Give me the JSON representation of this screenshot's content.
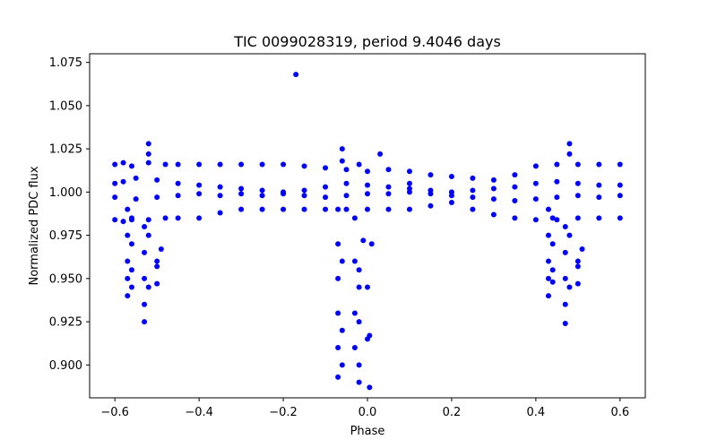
{
  "chart_data": {
    "type": "scatter",
    "title": "TIC 0099028319, period 9.4046 days",
    "xlabel": "Phase",
    "ylabel": "Normalized PDC flux",
    "xlim": [
      -0.66,
      0.66
    ],
    "ylim": [
      0.881,
      1.08
    ],
    "xticks": [
      -0.6,
      -0.4,
      -0.2,
      0.0,
      0.2,
      0.4,
      0.6
    ],
    "xtick_labels": [
      "−0.6",
      "−0.4",
      "−0.2",
      "0.0",
      "0.2",
      "0.4",
      "0.6"
    ],
    "yticks": [
      0.9,
      0.925,
      0.95,
      0.975,
      1.0,
      1.025,
      1.05,
      1.075
    ],
    "ytick_labels": [
      "0.900",
      "0.925",
      "0.950",
      "0.975",
      "1.000",
      "1.025",
      "1.050",
      "1.075"
    ],
    "grid": false,
    "marker_color": "#0000ff",
    "series": [
      {
        "points": [
          [
            -0.6,
            1.016
          ],
          [
            -0.58,
            1.017
          ],
          [
            -0.56,
            1.015
          ],
          [
            -0.52,
            1.017
          ],
          [
            -0.48,
            1.016
          ],
          [
            -0.45,
            1.016
          ],
          [
            -0.4,
            1.016
          ],
          [
            -0.35,
            1.016
          ],
          [
            -0.3,
            1.016
          ],
          [
            -0.25,
            1.016
          ],
          [
            -0.2,
            1.016
          ],
          [
            -0.15,
            1.015
          ],
          [
            -0.1,
            1.014
          ],
          [
            -0.05,
            1.013
          ],
          [
            0.0,
            1.012
          ],
          [
            0.05,
            1.013
          ],
          [
            0.1,
            1.012
          ],
          [
            0.15,
            1.01
          ],
          [
            0.2,
            1.009
          ],
          [
            0.25,
            1.008
          ],
          [
            0.3,
            1.007
          ],
          [
            0.35,
            1.01
          ],
          [
            0.4,
            1.015
          ],
          [
            0.45,
            1.016
          ],
          [
            0.5,
            1.016
          ],
          [
            0.55,
            1.016
          ],
          [
            0.6,
            1.016
          ],
          [
            -0.6,
            0.984
          ],
          [
            -0.58,
            0.983
          ],
          [
            -0.56,
            0.984
          ],
          [
            -0.52,
            0.984
          ],
          [
            -0.48,
            0.985
          ],
          [
            -0.45,
            0.985
          ],
          [
            -0.4,
            0.985
          ],
          [
            -0.35,
            0.988
          ],
          [
            -0.3,
            0.99
          ],
          [
            -0.25,
            0.99
          ],
          [
            -0.2,
            0.99
          ],
          [
            -0.15,
            0.99
          ],
          [
            -0.1,
            0.99
          ],
          [
            -0.05,
            0.99
          ],
          [
            0.0,
            0.99
          ],
          [
            0.05,
            0.99
          ],
          [
            0.1,
            0.99
          ],
          [
            0.15,
            0.992
          ],
          [
            0.2,
            0.994
          ],
          [
            0.25,
            0.99
          ],
          [
            0.3,
            0.987
          ],
          [
            0.35,
            0.985
          ],
          [
            0.4,
            0.984
          ],
          [
            0.45,
            0.984
          ],
          [
            0.5,
            0.985
          ],
          [
            0.55,
            0.985
          ],
          [
            0.6,
            0.985
          ],
          [
            -0.6,
            1.005
          ],
          [
            -0.58,
            1.006
          ],
          [
            -0.55,
            1.008
          ],
          [
            -0.5,
            1.007
          ],
          [
            -0.45,
            1.005
          ],
          [
            -0.4,
            1.004
          ],
          [
            -0.35,
            1.003
          ],
          [
            -0.3,
            1.002
          ],
          [
            -0.25,
            1.001
          ],
          [
            -0.2,
            1.0
          ],
          [
            -0.15,
            1.001
          ],
          [
            -0.1,
            1.003
          ],
          [
            -0.05,
            1.005
          ],
          [
            0.0,
            1.004
          ],
          [
            0.05,
            1.003
          ],
          [
            0.1,
            1.002
          ],
          [
            0.15,
            1.001
          ],
          [
            0.2,
            1.0
          ],
          [
            0.25,
            1.001
          ],
          [
            0.3,
            1.002
          ],
          [
            0.35,
            1.003
          ],
          [
            0.4,
            1.005
          ],
          [
            0.45,
            1.006
          ],
          [
            0.5,
            1.005
          ],
          [
            0.55,
            1.004
          ],
          [
            0.6,
            1.004
          ],
          [
            -0.6,
            0.997
          ],
          [
            -0.55,
            0.996
          ],
          [
            -0.5,
            0.997
          ],
          [
            -0.45,
            0.998
          ],
          [
            -0.4,
            0.999
          ],
          [
            -0.35,
            0.998
          ],
          [
            -0.3,
            0.999
          ],
          [
            -0.25,
            0.998
          ],
          [
            -0.2,
            0.999
          ],
          [
            -0.15,
            0.998
          ],
          [
            -0.1,
            0.997
          ],
          [
            -0.05,
            0.998
          ],
          [
            0.0,
            0.999
          ],
          [
            0.05,
            0.999
          ],
          [
            0.1,
            1.0
          ],
          [
            0.15,
            0.999
          ],
          [
            0.2,
            0.998
          ],
          [
            0.25,
            0.997
          ],
          [
            0.3,
            0.996
          ],
          [
            0.35,
            0.995
          ],
          [
            0.4,
            0.996
          ],
          [
            0.45,
            0.997
          ],
          [
            0.5,
            0.998
          ],
          [
            0.55,
            0.997
          ],
          [
            0.6,
            0.998
          ],
          [
            -0.57,
            0.99
          ],
          [
            -0.57,
            0.975
          ],
          [
            -0.57,
            0.96
          ],
          [
            -0.57,
            0.95
          ],
          [
            -0.57,
            0.94
          ],
          [
            -0.56,
            0.985
          ],
          [
            -0.56,
            0.97
          ],
          [
            -0.56,
            0.955
          ],
          [
            -0.56,
            0.945
          ],
          [
            -0.53,
            0.98
          ],
          [
            -0.53,
            0.965
          ],
          [
            -0.53,
            0.95
          ],
          [
            -0.53,
            0.935
          ],
          [
            -0.53,
            0.925
          ],
          [
            -0.52,
            0.945
          ],
          [
            -0.52,
            0.975
          ],
          [
            -0.52,
            1.028
          ],
          [
            -0.52,
            1.022
          ],
          [
            -0.5,
            0.96
          ],
          [
            -0.5,
            0.957
          ],
          [
            -0.5,
            0.947
          ],
          [
            -0.49,
            0.967
          ],
          [
            -0.17,
            1.068
          ],
          [
            -0.07,
            0.99
          ],
          [
            -0.07,
            0.97
          ],
          [
            -0.07,
            0.95
          ],
          [
            -0.07,
            0.93
          ],
          [
            -0.07,
            0.91
          ],
          [
            -0.07,
            0.893
          ],
          [
            -0.06,
            0.96
          ],
          [
            -0.06,
            0.92
          ],
          [
            -0.06,
            0.9
          ],
          [
            -0.06,
            1.025
          ],
          [
            -0.06,
            1.018
          ],
          [
            -0.03,
            0.985
          ],
          [
            -0.03,
            0.96
          ],
          [
            -0.03,
            0.93
          ],
          [
            -0.03,
            0.91
          ],
          [
            -0.02,
            0.955
          ],
          [
            -0.02,
            0.945
          ],
          [
            -0.02,
            0.925
          ],
          [
            -0.02,
            0.9
          ],
          [
            -0.02,
            0.89
          ],
          [
            -0.02,
            1.016
          ],
          [
            -0.01,
            0.972
          ],
          [
            0.0,
            0.945
          ],
          [
            0.005,
            0.917
          ],
          [
            0.005,
            0.887
          ],
          [
            0.0,
            0.915
          ],
          [
            0.01,
            0.97
          ],
          [
            0.03,
            1.022
          ],
          [
            0.1,
            1.005
          ],
          [
            0.43,
            0.99
          ],
          [
            0.43,
            0.975
          ],
          [
            0.43,
            0.96
          ],
          [
            0.43,
            0.95
          ],
          [
            0.43,
            0.94
          ],
          [
            0.44,
            0.985
          ],
          [
            0.44,
            0.97
          ],
          [
            0.44,
            0.955
          ],
          [
            0.44,
            0.948
          ],
          [
            0.47,
            0.98
          ],
          [
            0.47,
            0.965
          ],
          [
            0.47,
            0.95
          ],
          [
            0.47,
            0.935
          ],
          [
            0.47,
            0.924
          ],
          [
            0.48,
            0.945
          ],
          [
            0.48,
            0.975
          ],
          [
            0.48,
            1.028
          ],
          [
            0.48,
            1.022
          ],
          [
            0.5,
            0.96
          ],
          [
            0.5,
            0.957
          ],
          [
            0.5,
            0.947
          ],
          [
            0.51,
            0.967
          ]
        ]
      }
    ]
  }
}
